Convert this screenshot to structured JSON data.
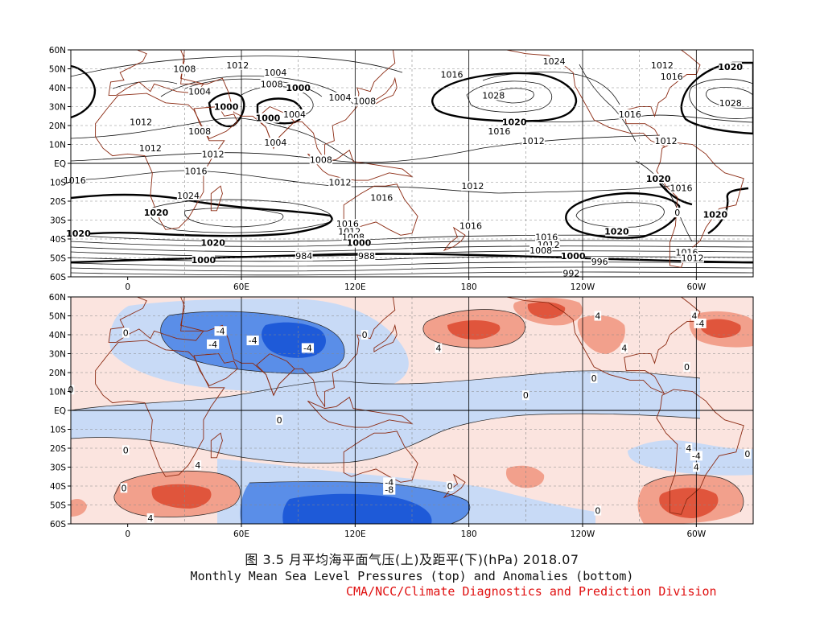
{
  "figure": {
    "caption_cn": "图 3.5  月平均海平面气压(上)及距平(下)(hPa)  2018.07",
    "caption_en": "Monthly Mean Sea Level Pressures (top) and Anomalies (bottom)",
    "credit": "CMA/NCC/Climate Diagnostics and Prediction Division"
  },
  "axes": {
    "lat_labels": [
      "60N",
      "50N",
      "40N",
      "30N",
      "20N",
      "10N",
      "EQ",
      "10S",
      "20S",
      "30S",
      "40S",
      "50S",
      "60S"
    ],
    "lon_labels": [
      "0",
      "60E",
      "120E",
      "180",
      "120W",
      "60W"
    ],
    "lon_values": [
      0,
      60,
      120,
      180,
      240,
      300
    ],
    "lon_range": [
      -30,
      330
    ],
    "lat_range": [
      -60,
      60
    ]
  },
  "colors": {
    "coast": "#8b2a12",
    "contour": "#111111",
    "neg_strong": "#1e5ad8",
    "neg_mid": "#5a8ee8",
    "neg_light": "#c8daf6",
    "pos_light": "#fbe4df",
    "pos_mid": "#f2a08c",
    "pos_strong": "#e0553c",
    "credit": "#e01010"
  },
  "top_panel": {
    "variable": "Sea Level Pressure",
    "units": "hPa",
    "contour_labels": [
      {
        "text": "1008",
        "lon": 30,
        "lat": 50
      },
      {
        "text": "1012",
        "lon": 58,
        "lat": 52
      },
      {
        "text": "1004",
        "lon": 78,
        "lat": 48
      },
      {
        "text": "1008",
        "lon": 76,
        "lat": 42
      },
      {
        "text": "1000",
        "lon": 90,
        "lat": 40,
        "bold": true
      },
      {
        "text": "1004",
        "lon": 38,
        "lat": 38
      },
      {
        "text": "1000",
        "lon": 52,
        "lat": 30,
        "bold": true
      },
      {
        "text": "1000",
        "lon": 74,
        "lat": 24,
        "bold": true
      },
      {
        "text": "1004",
        "lon": 112,
        "lat": 35
      },
      {
        "text": "1008",
        "lon": 125,
        "lat": 33
      },
      {
        "text": "1004",
        "lon": 88,
        "lat": 26
      },
      {
        "text": "1012",
        "lon": 7,
        "lat": 22
      },
      {
        "text": "1008",
        "lon": 38,
        "lat": 17
      },
      {
        "text": "1012",
        "lon": 12,
        "lat": 8
      },
      {
        "text": "1004",
        "lon": 78,
        "lat": 11
      },
      {
        "text": "1012",
        "lon": 45,
        "lat": 5
      },
      {
        "text": "1008",
        "lon": 102,
        "lat": 2
      },
      {
        "text": "1016",
        "lon": 36,
        "lat": -4
      },
      {
        "text": "1016",
        "lon": -28,
        "lat": -9
      },
      {
        "text": "1012",
        "lon": 112,
        "lat": -10
      },
      {
        "text": "1024",
        "lon": 32,
        "lat": -17
      },
      {
        "text": "1016",
        "lon": 134,
        "lat": -18
      },
      {
        "text": "1012",
        "lon": 182,
        "lat": -12
      },
      {
        "text": "1020",
        "lon": 15,
        "lat": -26,
        "bold": true
      },
      {
        "text": "1016",
        "lon": 116,
        "lat": -32
      },
      {
        "text": "1012",
        "lon": 117,
        "lat": -36
      },
      {
        "text": "1008",
        "lon": 119,
        "lat": -39
      },
      {
        "text": "1020",
        "lon": -26,
        "lat": -37,
        "bold": true
      },
      {
        "text": "1020",
        "lon": 45,
        "lat": -42,
        "bold": true
      },
      {
        "text": "1000",
        "lon": 122,
        "lat": -42,
        "bold": true
      },
      {
        "text": "984",
        "lon": 93,
        "lat": -49
      },
      {
        "text": "988",
        "lon": 126,
        "lat": -49
      },
      {
        "text": "1000",
        "lon": 40,
        "lat": -51,
        "bold": true
      },
      {
        "text": "1016",
        "lon": 181,
        "lat": -33
      },
      {
        "text": "1016",
        "lon": 221,
        "lat": -39
      },
      {
        "text": "1012",
        "lon": 222,
        "lat": -43
      },
      {
        "text": "1008",
        "lon": 218,
        "lat": -46
      },
      {
        "text": "1000",
        "lon": 235,
        "lat": -49,
        "bold": true
      },
      {
        "text": "996",
        "lon": 249,
        "lat": -52
      },
      {
        "text": "992",
        "lon": 234,
        "lat": -58
      },
      {
        "text": "1020",
        "lon": 258,
        "lat": -36,
        "bold": true
      },
      {
        "text": "1016",
        "lon": 295,
        "lat": -47
      },
      {
        "text": "1012",
        "lon": 298,
        "lat": -50
      },
      {
        "text": "1016",
        "lon": 171,
        "lat": 47
      },
      {
        "text": "1028",
        "lon": 193,
        "lat": 36
      },
      {
        "text": "1024",
        "lon": 225,
        "lat": 54
      },
      {
        "text": "1020",
        "lon": 204,
        "lat": 22,
        "bold": true
      },
      {
        "text": "1016",
        "lon": 196,
        "lat": 17
      },
      {
        "text": "1012",
        "lon": 214,
        "lat": 12
      },
      {
        "text": "1016",
        "lon": 265,
        "lat": 26
      },
      {
        "text": "1012",
        "lon": 282,
        "lat": 52
      },
      {
        "text": "1016",
        "lon": 287,
        "lat": 46
      },
      {
        "text": "1012",
        "lon": 284,
        "lat": 12
      },
      {
        "text": "1020",
        "lon": 318,
        "lat": 51,
        "bold": true
      },
      {
        "text": "1028",
        "lon": 318,
        "lat": 32
      },
      {
        "text": "1020",
        "lon": 280,
        "lat": -8,
        "bold": true
      },
      {
        "text": "1016",
        "lon": 292,
        "lat": -13
      },
      {
        "text": "1020",
        "lon": 310,
        "lat": -27,
        "bold": true
      },
      {
        "text": "0",
        "lon": 290,
        "lat": -26
      }
    ]
  },
  "bottom_panel": {
    "variable": "Sea Level Pressure Anomaly",
    "units": "hPa",
    "contour_labels": [
      {
        "text": "-4",
        "lon": 49,
        "lat": 42
      },
      {
        "text": "-4",
        "lon": 66,
        "lat": 37
      },
      {
        "text": "-4",
        "lon": 45,
        "lat": 35
      },
      {
        "text": "-4",
        "lon": 95,
        "lat": 33
      },
      {
        "text": "0",
        "lon": 125,
        "lat": 40
      },
      {
        "text": "4",
        "lon": 164,
        "lat": 33
      },
      {
        "text": "0",
        "lon": -1,
        "lat": 41
      },
      {
        "text": "4",
        "lon": 248,
        "lat": 50
      },
      {
        "text": "4",
        "lon": 299,
        "lat": 50
      },
      {
        "text": "4",
        "lon": 262,
        "lat": 33
      },
      {
        "text": "0",
        "lon": 246,
        "lat": 17
      },
      {
        "text": "0",
        "lon": 295,
        "lat": 23
      },
      {
        "text": "0",
        "lon": -30,
        "lat": 11
      },
      {
        "text": "0",
        "lon": 210,
        "lat": 8
      },
      {
        "text": "0",
        "lon": 80,
        "lat": -5
      },
      {
        "text": "0",
        "lon": -1,
        "lat": -21
      },
      {
        "text": "4",
        "lon": 37,
        "lat": -29
      },
      {
        "text": "0",
        "lon": -2,
        "lat": -41
      },
      {
        "text": "4",
        "lon": 12,
        "lat": -57
      },
      {
        "text": "-4",
        "lon": 138,
        "lat": -38
      },
      {
        "text": "-8",
        "lon": 138,
        "lat": -42
      },
      {
        "text": "0",
        "lon": 170,
        "lat": -40
      },
      {
        "text": "0",
        "lon": 248,
        "lat": -53
      },
      {
        "text": "4",
        "lon": 296,
        "lat": -20
      },
      {
        "text": "-4",
        "lon": 300,
        "lat": -24
      },
      {
        "text": "4",
        "lon": 300,
        "lat": -30
      },
      {
        "text": "0",
        "lon": 327,
        "lat": -23
      },
      {
        "text": "-4",
        "lon": 302,
        "lat": 46
      }
    ]
  }
}
